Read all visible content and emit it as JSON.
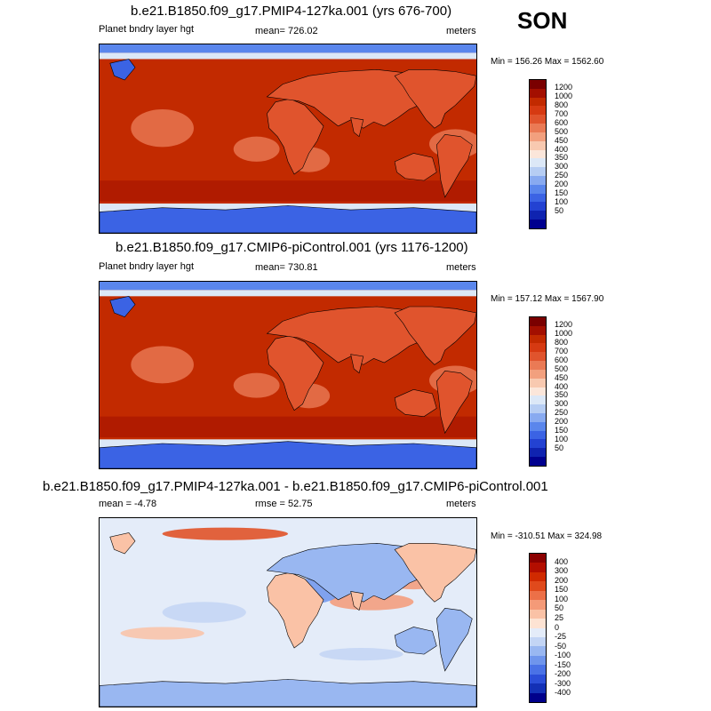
{
  "season": "SON",
  "panels": [
    {
      "title": "b.e21.B1850.f09_g17.PMIP4-127ka.001 (yrs 676-700)",
      "left_label": "Planet bndry layer hgt",
      "center_label": "mean= 726.02",
      "right_label": "meters",
      "minmax": "Min = 156.26 Max = 1562.60",
      "type": "absolute",
      "colorbar_labels": [
        "1200",
        "1000",
        "800",
        "700",
        "600",
        "500",
        "450",
        "400",
        "350",
        "300",
        "250",
        "200",
        "150",
        "100",
        "50"
      ]
    },
    {
      "title": "b.e21.B1850.f09_g17.CMIP6-piControl.001 (yrs 1176-1200)",
      "left_label": "Planet bndry layer hgt",
      "center_label": "mean= 730.81",
      "right_label": "meters",
      "minmax": "Min = 157.12 Max = 1567.90",
      "type": "absolute",
      "colorbar_labels": [
        "1200",
        "1000",
        "800",
        "700",
        "600",
        "500",
        "450",
        "400",
        "350",
        "300",
        "250",
        "200",
        "150",
        "100",
        "50"
      ]
    },
    {
      "title": "b.e21.B1850.f09_g17.PMIP4-127ka.001 - b.e21.B1850.f09_g17.CMIP6-piControl.001",
      "left_label": "mean =  -4.78",
      "center_label": "rmse =  52.75",
      "right_label": "meters",
      "minmax": "Min = -310.51 Max = 324.98",
      "type": "difference",
      "colorbar_labels": [
        "400",
        "300",
        "200",
        "150",
        "100",
        "50",
        "25",
        "0",
        "-25",
        "-50",
        "-100",
        "-150",
        "-200",
        "-300",
        "-400"
      ]
    }
  ],
  "colors": {
    "absolute_scale": [
      "#7a0000",
      "#a30f00",
      "#c22a00",
      "#d63a12",
      "#e0542d",
      "#ea7a55",
      "#f2a07e",
      "#f8c9b0",
      "#fbe6da",
      "#dce8f7",
      "#b6cdf3",
      "#88aaf0",
      "#5a86ec",
      "#3b63e4",
      "#2342d2",
      "#0f23b0",
      "#00008f"
    ],
    "difference_scale": [
      "#8b0000",
      "#b30e00",
      "#d02a00",
      "#e04a1c",
      "#ec7048",
      "#f49a78",
      "#fac2a6",
      "#fde3d3",
      "#e4ecf9",
      "#c3d5f5",
      "#99b7f1",
      "#6f95ec",
      "#4a72e6",
      "#2b4ed8",
      "#1330b6",
      "#00008b"
    ],
    "coastline": "#000000"
  }
}
